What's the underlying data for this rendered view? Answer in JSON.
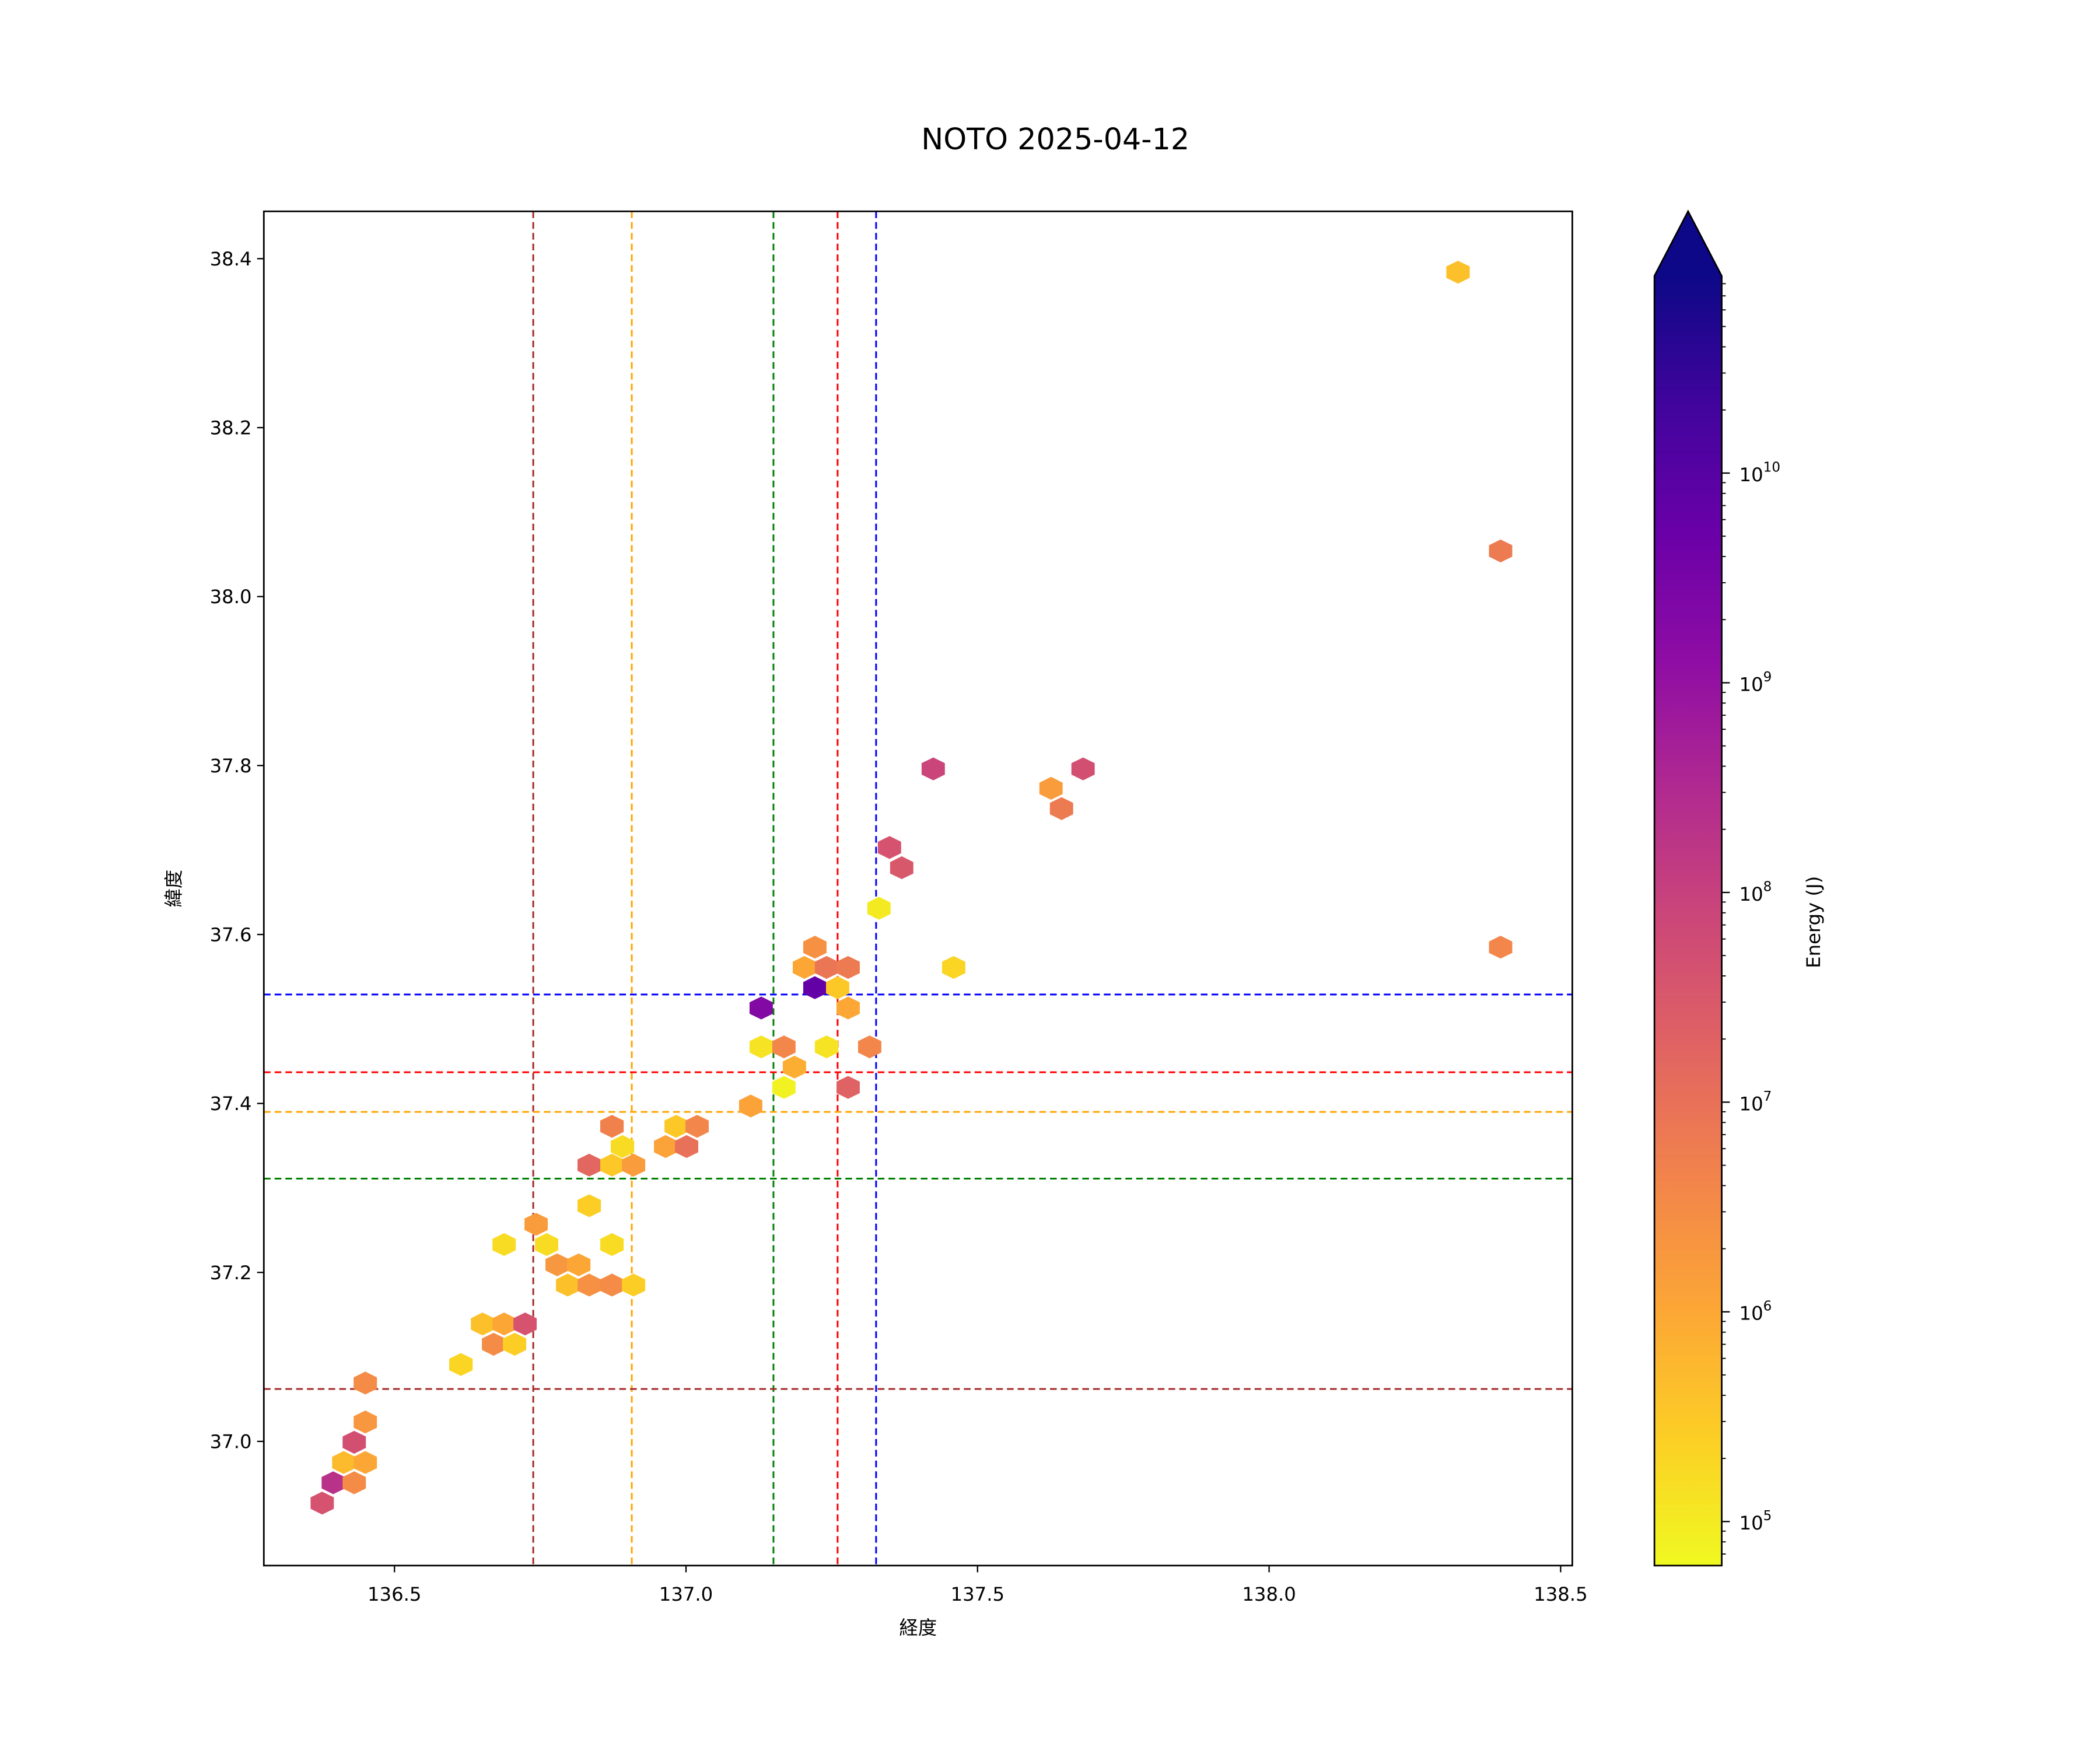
{
  "chart_data": {
    "type": "hexbin",
    "title": "NOTO 2025-04-12",
    "xlabel": "経度",
    "ylabel": "緯度",
    "xlim": [
      136.276,
      138.52
    ],
    "ylim": [
      36.853,
      38.456
    ],
    "xticks": [
      136.5,
      137.0,
      137.5,
      138.0,
      138.5
    ],
    "xtick_labels": [
      "136.5",
      "137.0",
      "137.5",
      "138.0",
      "138.5"
    ],
    "yticks": [
      37.0,
      37.2,
      37.4,
      37.6,
      37.8,
      38.0,
      38.2,
      38.4
    ],
    "ytick_labels": [
      "37.0",
      "37.2",
      "37.4",
      "37.6",
      "37.8",
      "38.0",
      "38.2",
      "38.4"
    ],
    "grid": false,
    "colorbar": {
      "label": "Energy (J)",
      "colormap": "plasma",
      "scale": "log",
      "log10_range": [
        4.79,
        10.94
      ],
      "extend": "max",
      "ticks": [
        5,
        6,
        7,
        8,
        9,
        10
      ],
      "tick_labels": [
        "10",
        "10",
        "10",
        "10",
        "10",
        "10"
      ],
      "tick_exponents": [
        "5",
        "6",
        "7",
        "8",
        "9",
        "10"
      ]
    },
    "vlines": [
      {
        "x": 136.738,
        "color": "#a52a2a"
      },
      {
        "x": 136.907,
        "color": "#ffa500"
      },
      {
        "x": 137.15,
        "color": "#008000"
      },
      {
        "x": 137.26,
        "color": "#ff0000"
      },
      {
        "x": 137.326,
        "color": "#0000ff"
      }
    ],
    "hlines": [
      {
        "y": 37.529,
        "color": "#0000ff"
      },
      {
        "y": 37.437,
        "color": "#ff0000"
      },
      {
        "y": 37.39,
        "color": "#ffa500"
      },
      {
        "y": 37.311,
        "color": "#008000"
      },
      {
        "y": 37.062,
        "color": "#a52a2a"
      }
    ],
    "bins_lon_lat_log10E": [
      [
        138.324,
        38.384,
        5.6
      ],
      [
        138.397,
        38.054,
        6.8
      ],
      [
        138.397,
        37.585,
        6.6
      ],
      [
        137.424,
        37.796,
        7.9
      ],
      [
        137.681,
        37.796,
        7.7
      ],
      [
        137.626,
        37.773,
        6.2
      ],
      [
        137.644,
        37.749,
        6.8
      ],
      [
        137.349,
        37.703,
        7.6
      ],
      [
        137.37,
        37.679,
        7.5
      ],
      [
        137.331,
        37.631,
        5.0
      ],
      [
        137.459,
        37.561,
        5.3
      ],
      [
        137.221,
        37.585,
        6.4
      ],
      [
        137.203,
        37.561,
        6.0
      ],
      [
        137.241,
        37.561,
        6.9
      ],
      [
        137.278,
        37.561,
        6.8
      ],
      [
        137.221,
        37.537,
        9.8
      ],
      [
        137.26,
        37.537,
        5.5
      ],
      [
        137.278,
        37.513,
        6.0
      ],
      [
        137.129,
        37.513,
        9.3
      ],
      [
        137.129,
        37.467,
        5.1
      ],
      [
        137.168,
        37.467,
        6.6
      ],
      [
        137.186,
        37.443,
        5.9
      ],
      [
        137.241,
        37.467,
        5.1
      ],
      [
        137.315,
        37.467,
        6.6
      ],
      [
        137.168,
        37.419,
        4.9
      ],
      [
        137.278,
        37.419,
        7.3
      ],
      [
        137.111,
        37.397,
        6.1
      ],
      [
        136.983,
        37.373,
        5.5
      ],
      [
        137.019,
        37.373,
        6.6
      ],
      [
        136.965,
        37.349,
        6.1
      ],
      [
        137.001,
        37.349,
        7.0
      ],
      [
        136.873,
        37.373,
        6.7
      ],
      [
        136.891,
        37.349,
        5.2
      ],
      [
        136.834,
        37.327,
        7.2
      ],
      [
        136.873,
        37.327,
        5.5
      ],
      [
        136.91,
        37.327,
        6.2
      ],
      [
        136.834,
        37.279,
        5.4
      ],
      [
        136.743,
        37.257,
        6.2
      ],
      [
        136.688,
        37.233,
        5.2
      ],
      [
        136.761,
        37.233,
        5.2
      ],
      [
        136.873,
        37.233,
        5.2
      ],
      [
        136.779,
        37.209,
        6.3
      ],
      [
        136.816,
        37.209,
        6.0
      ],
      [
        136.797,
        37.185,
        5.6
      ],
      [
        136.834,
        37.185,
        6.4
      ],
      [
        136.873,
        37.185,
        6.5
      ],
      [
        136.91,
        37.185,
        5.4
      ],
      [
        136.651,
        37.139,
        5.6
      ],
      [
        136.688,
        37.139,
        6.0
      ],
      [
        136.724,
        37.139,
        7.6
      ],
      [
        136.67,
        37.115,
        6.5
      ],
      [
        136.706,
        37.115,
        5.4
      ],
      [
        136.614,
        37.091,
        5.3
      ],
      [
        136.45,
        37.069,
        6.5
      ],
      [
        136.45,
        37.023,
        6.3
      ],
      [
        136.431,
        36.999,
        7.7
      ],
      [
        136.413,
        36.975,
        5.7
      ],
      [
        136.45,
        36.975,
        6.0
      ],
      [
        136.395,
        36.951,
        8.3
      ],
      [
        136.431,
        36.951,
        6.5
      ],
      [
        136.376,
        36.927,
        7.6
      ]
    ]
  }
}
